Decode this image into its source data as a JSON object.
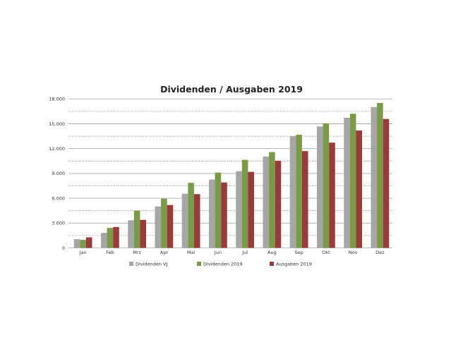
{
  "chart_data": {
    "type": "bar",
    "title": "Dividenden / Ausgaben 2019",
    "xlabel": "",
    "ylabel": "",
    "ylim": [
      0,
      18000
    ],
    "yticks": [
      0,
      3000,
      6000,
      9000,
      12000,
      15000,
      18000
    ],
    "ytick_labels": [
      "0",
      "3.000",
      "6.000",
      "9.000",
      "12.000",
      "15.000",
      "18.000"
    ],
    "grid": "major solid, minor dotted at 1.500 intervals",
    "legend_position": "bottom",
    "categories": [
      "Jan",
      "Feb",
      "Mrz",
      "Apr",
      "Mai",
      "Jun",
      "Jul",
      "Aug",
      "Sep",
      "Okt",
      "Nov",
      "Dez"
    ],
    "series": [
      {
        "name": "Dividenden VJ",
        "color": "#A6A6A6",
        "values": [
          1060,
          1820,
          3340,
          5010,
          6550,
          8250,
          9280,
          11040,
          13510,
          14680,
          15730,
          17030
        ]
      },
      {
        "name": "Dividenden 2019",
        "color": "#7A9A47",
        "values": [
          970,
          2420,
          4500,
          5950,
          7860,
          9100,
          10640,
          11580,
          13680,
          15050,
          16210,
          17520
        ]
      },
      {
        "name": "Ausgaben 2019",
        "color": "#9A3B3B",
        "values": [
          1280,
          2530,
          3390,
          5180,
          6500,
          7910,
          9190,
          10530,
          11700,
          12720,
          14190,
          15580
        ]
      }
    ]
  }
}
